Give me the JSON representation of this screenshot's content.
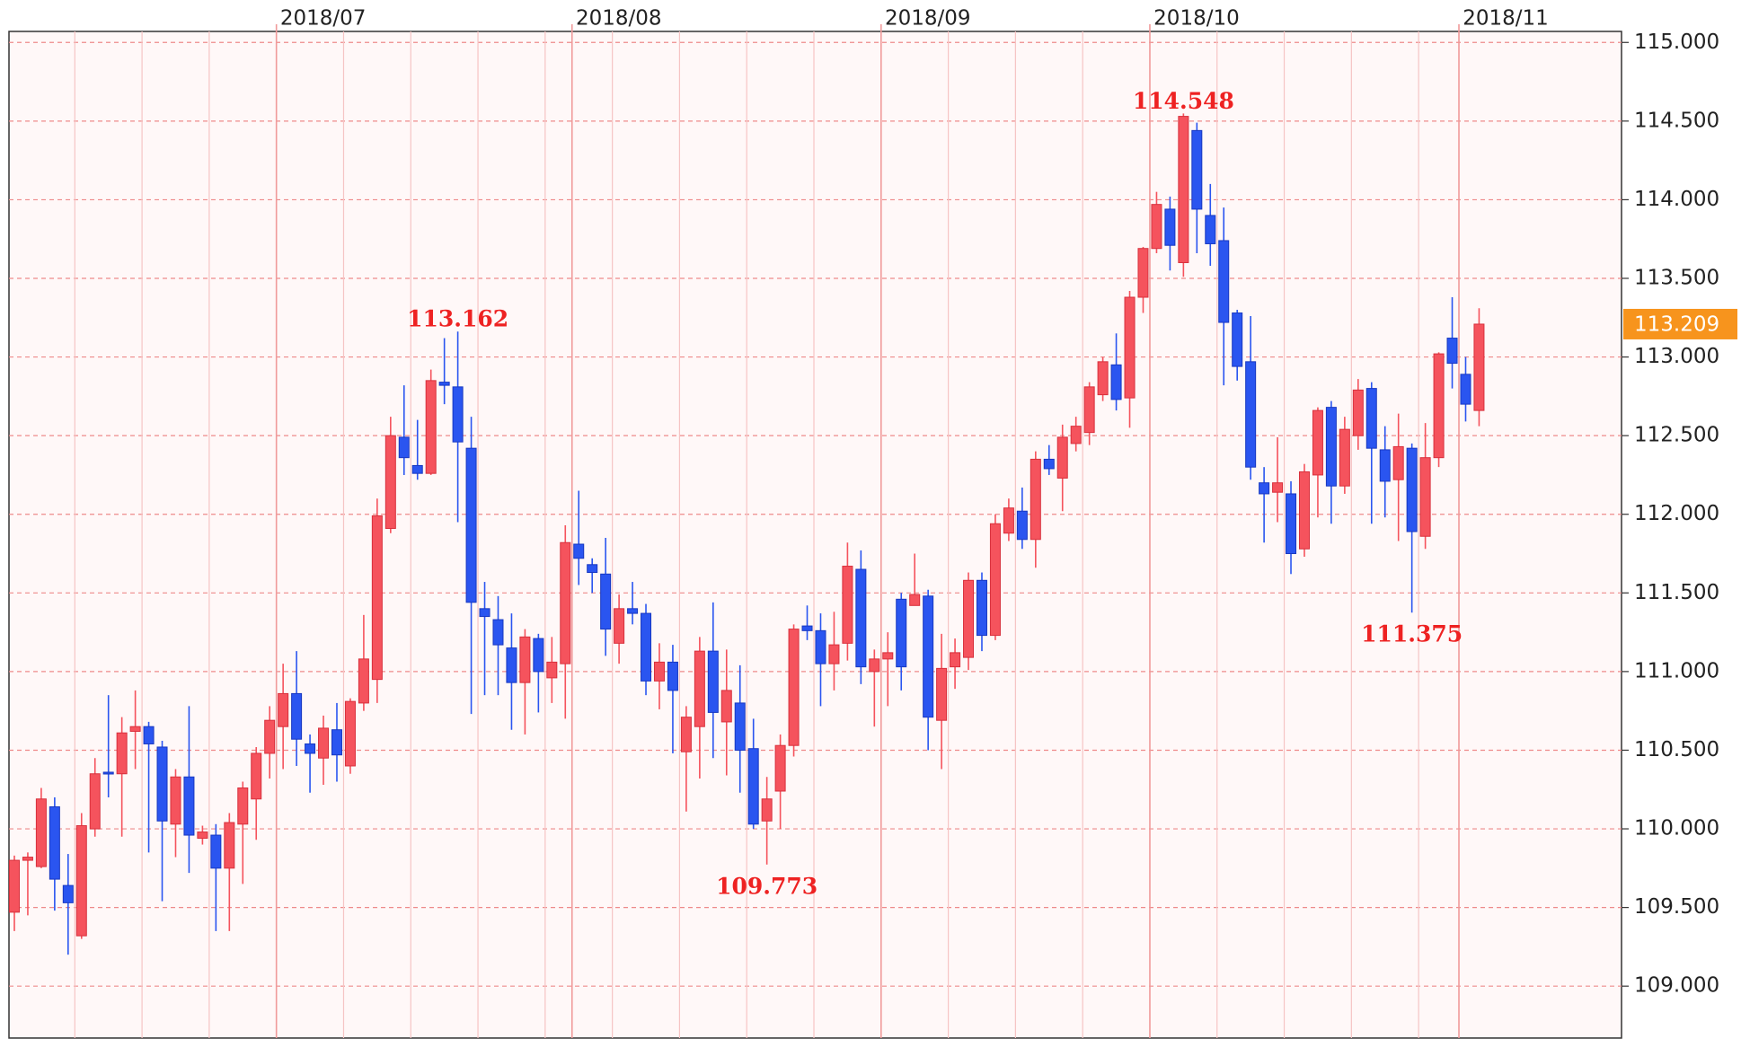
{
  "chart_data": {
    "type": "candlestick",
    "open": [
      109.47,
      109.8,
      109.76,
      110.14,
      109.64,
      109.32,
      110.0,
      110.36,
      110.35,
      110.62,
      110.65,
      110.52,
      110.03,
      110.33,
      109.94,
      109.96,
      109.75,
      110.03,
      110.19,
      110.48,
      110.65,
      110.86,
      110.54,
      110.45,
      110.63,
      110.4,
      110.8,
      110.95,
      111.91,
      112.49,
      112.31,
      112.26,
      112.84,
      112.81,
      112.42,
      111.4,
      111.33,
      111.15,
      110.93,
      111.21,
      110.96,
      111.05,
      111.81,
      111.68,
      111.62,
      111.18,
      111.4,
      111.37,
      110.94,
      111.06,
      110.49,
      110.65,
      111.13,
      110.68,
      110.8,
      110.51,
      110.05,
      110.24,
      110.53,
      111.29,
      111.26,
      111.05,
      111.18,
      111.65,
      111.0,
      111.08,
      111.46,
      111.42,
      111.48,
      110.69,
      111.03,
      111.09,
      111.58,
      111.23,
      111.88,
      112.02,
      111.84,
      112.35,
      112.23,
      112.45,
      112.52,
      112.76,
      112.95,
      112.74,
      113.38,
      113.69,
      113.94,
      113.6,
      114.44,
      113.9,
      113.74,
      113.28,
      112.97,
      112.2,
      112.14,
      112.13,
      111.78,
      112.25,
      112.68,
      112.18,
      112.5,
      112.8,
      112.41,
      112.22,
      112.42,
      111.86,
      112.36,
      113.12,
      112.89,
      112.66
    ],
    "high": [
      109.83,
      109.85,
      110.26,
      110.2,
      109.84,
      110.1,
      110.45,
      110.85,
      110.71,
      110.88,
      110.68,
      110.56,
      110.38,
      110.78,
      110.02,
      110.03,
      110.1,
      110.3,
      110.52,
      110.78,
      111.05,
      111.13,
      110.6,
      110.72,
      110.8,
      110.83,
      111.36,
      112.1,
      112.62,
      112.82,
      112.6,
      112.92,
      113.12,
      113.162,
      112.62,
      111.57,
      111.48,
      111.37,
      111.27,
      111.24,
      111.22,
      111.93,
      112.15,
      111.72,
      111.85,
      111.49,
      111.57,
      111.43,
      111.18,
      111.17,
      110.78,
      111.22,
      111.44,
      111.14,
      111.04,
      110.7,
      110.33,
      110.6,
      111.3,
      111.42,
      111.37,
      111.38,
      111.82,
      111.77,
      111.14,
      111.25,
      111.5,
      111.75,
      111.52,
      111.24,
      111.21,
      111.63,
      111.63,
      112.0,
      112.1,
      112.17,
      112.4,
      112.44,
      112.57,
      112.62,
      112.84,
      113.0,
      113.15,
      113.42,
      113.7,
      114.05,
      114.02,
      114.548,
      114.49,
      114.1,
      113.95,
      113.3,
      113.26,
      112.3,
      112.49,
      112.21,
      112.32,
      112.68,
      112.72,
      112.62,
      112.86,
      112.84,
      112.56,
      112.64,
      112.45,
      112.58,
      113.03,
      113.38,
      113.0,
      113.31
    ],
    "low": [
      109.35,
      109.45,
      109.75,
      109.48,
      109.2,
      109.3,
      109.95,
      110.2,
      109.95,
      110.38,
      109.85,
      109.54,
      109.82,
      109.72,
      109.9,
      109.35,
      109.35,
      109.65,
      109.93,
      110.32,
      110.38,
      110.4,
      110.23,
      110.28,
      110.3,
      110.35,
      110.75,
      110.8,
      111.88,
      112.25,
      112.22,
      112.25,
      112.7,
      111.95,
      110.73,
      110.85,
      110.85,
      110.63,
      110.6,
      110.74,
      110.8,
      110.7,
      111.55,
      111.5,
      111.1,
      111.05,
      111.3,
      110.85,
      110.76,
      110.48,
      110.11,
      110.32,
      110.45,
      110.34,
      110.23,
      110.0,
      109.773,
      110.0,
      110.46,
      111.2,
      110.78,
      110.88,
      111.07,
      110.92,
      110.65,
      110.78,
      110.88,
      111.42,
      110.5,
      110.38,
      110.89,
      111.01,
      111.13,
      111.2,
      111.83,
      111.78,
      111.66,
      112.25,
      112.02,
      112.4,
      112.44,
      112.72,
      112.66,
      112.55,
      113.28,
      113.66,
      113.55,
      113.51,
      113.66,
      113.58,
      112.82,
      112.85,
      112.22,
      111.82,
      111.95,
      111.62,
      111.73,
      111.98,
      111.94,
      112.13,
      112.41,
      111.94,
      111.98,
      111.83,
      111.375,
      111.78,
      112.3,
      112.8,
      112.59,
      112.56
    ],
    "close": [
      109.8,
      109.82,
      110.19,
      109.68,
      109.53,
      110.02,
      110.35,
      110.35,
      110.61,
      110.65,
      110.54,
      110.05,
      110.33,
      109.96,
      109.98,
      109.75,
      110.04,
      110.26,
      110.48,
      110.69,
      110.86,
      110.57,
      110.48,
      110.64,
      110.47,
      110.81,
      111.08,
      111.99,
      112.5,
      112.36,
      112.26,
      112.85,
      112.82,
      112.46,
      111.44,
      111.35,
      111.17,
      110.93,
      111.22,
      111.0,
      111.06,
      111.82,
      111.72,
      111.63,
      111.27,
      111.4,
      111.37,
      110.94,
      111.06,
      110.88,
      110.71,
      111.13,
      110.74,
      110.88,
      110.5,
      110.03,
      110.19,
      110.53,
      111.27,
      111.26,
      111.05,
      111.17,
      111.67,
      111.03,
      111.08,
      111.12,
      111.03,
      111.49,
      110.71,
      111.02,
      111.12,
      111.58,
      111.23,
      111.94,
      112.04,
      111.84,
      112.35,
      112.29,
      112.49,
      112.56,
      112.81,
      112.97,
      112.73,
      113.38,
      113.69,
      113.97,
      113.71,
      114.53,
      113.94,
      113.72,
      113.22,
      112.94,
      112.3,
      112.13,
      112.2,
      111.75,
      112.27,
      112.66,
      112.18,
      112.54,
      112.79,
      112.42,
      112.21,
      112.43,
      111.89,
      112.36,
      113.02,
      112.96,
      112.7,
      113.209
    ],
    "up_color": "#f5535d",
    "down_color": "#2a55f0",
    "last_price_color": "#f7941d",
    "annotate_high": [
      33,
      87
    ],
    "annotate_low": [
      56,
      104
    ],
    "xlim": [
      -0.4,
      119.6
    ],
    "xticks": [
      {
        "value": 19.5,
        "label": "2018/07"
      },
      {
        "value": 41.5,
        "label": "2018/08"
      },
      {
        "value": 64.5,
        "label": "2018/09"
      },
      {
        "value": 84.5,
        "label": "2018/10"
      },
      {
        "value": 107.5,
        "label": "2018/11"
      }
    ],
    "minor_xticks": [
      4.5,
      9.5,
      14.5,
      24.5,
      29.5,
      34.5,
      39.5,
      44.5,
      49.5,
      54.5,
      59.5,
      69.5,
      74.5,
      79.5,
      89.5,
      94.5,
      99.5,
      104.5
    ],
    "ylim": [
      108.67,
      115.07
    ],
    "yticks": [
      {
        "value": 109,
        "label": "109.000"
      },
      {
        "value": 109.5,
        "label": "109.500"
      },
      {
        "value": 110,
        "label": "110.000"
      },
      {
        "value": 110.5,
        "label": "110.500"
      },
      {
        "value": 111,
        "label": "111.000"
      },
      {
        "value": 111.5,
        "label": "111.500"
      },
      {
        "value": 112,
        "label": "112.000"
      },
      {
        "value": 112.5,
        "label": "112.500"
      },
      {
        "value": 113,
        "label": "113.000"
      },
      {
        "value": 113.5,
        "label": "113.500"
      },
      {
        "value": 114,
        "label": "114.000"
      },
      {
        "value": 114.5,
        "label": "114.500"
      },
      {
        "value": 115,
        "label": "115.000"
      }
    ],
    "grid": true
  }
}
